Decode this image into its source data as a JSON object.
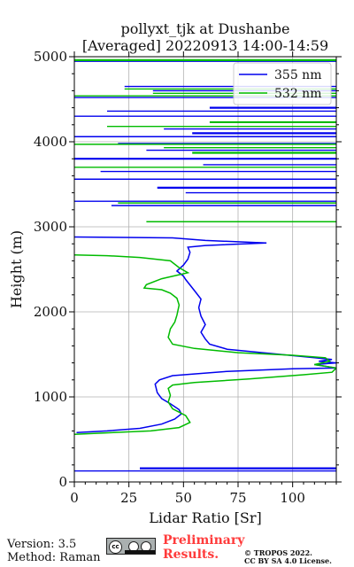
{
  "chart_data": {
    "type": "line",
    "title_line1": "pollyxt_tjk at Dushanbe",
    "title_line2": "[Averaged] 20220913 14:00-14:59",
    "xlabel": "Lidar Ratio [Sr]",
    "ylabel": "Height (m)",
    "xlim": [
      0,
      120
    ],
    "ylim": [
      0,
      5000
    ],
    "x_ticks": [
      "0",
      "25",
      "50",
      "75",
      "100"
    ],
    "y_ticks": [
      "0",
      "1000",
      "2000",
      "3000",
      "4000",
      "5000"
    ],
    "grid": true,
    "legend_position": "top-right",
    "series": [
      {
        "name": "355 nm",
        "color": "#0000ee",
        "points": [
          [
            1,
            580
          ],
          [
            15,
            600
          ],
          [
            30,
            630
          ],
          [
            40,
            680
          ],
          [
            46,
            740
          ],
          [
            49,
            800
          ],
          [
            48,
            850
          ],
          [
            44,
            920
          ],
          [
            40,
            980
          ],
          [
            38,
            1050
          ],
          [
            37,
            1150
          ],
          [
            39,
            1200
          ],
          [
            45,
            1250
          ],
          [
            70,
            1300
          ],
          [
            100,
            1330
          ],
          [
            120,
            1340
          ],
          [
            110,
            1380
          ],
          [
            120,
            1400
          ],
          [
            112,
            1420
          ],
          [
            118,
            1440
          ],
          [
            110,
            1460
          ],
          [
            90,
            1510
          ],
          [
            70,
            1560
          ],
          [
            62,
            1620
          ],
          [
            60,
            1680
          ],
          [
            58,
            1760
          ],
          [
            60,
            1850
          ],
          [
            58,
            1950
          ],
          [
            57,
            2050
          ],
          [
            58,
            2150
          ],
          [
            55,
            2250
          ],
          [
            51,
            2380
          ],
          [
            50,
            2420
          ],
          [
            47,
            2480
          ],
          [
            50,
            2550
          ],
          [
            52,
            2620
          ],
          [
            53,
            2700
          ],
          [
            52,
            2760
          ],
          [
            60,
            2780
          ],
          [
            88,
            2810
          ],
          [
            60,
            2840
          ],
          [
            45,
            2870
          ],
          [
            0,
            2880
          ]
        ]
      },
      {
        "name": "532 nm",
        "color": "#00bb00",
        "points": [
          [
            0,
            560
          ],
          [
            35,
            600
          ],
          [
            48,
            640
          ],
          [
            53,
            700
          ],
          [
            51,
            780
          ],
          [
            45,
            860
          ],
          [
            43,
            940
          ],
          [
            44,
            1020
          ],
          [
            43,
            1100
          ],
          [
            45,
            1140
          ],
          [
            55,
            1170
          ],
          [
            80,
            1210
          ],
          [
            105,
            1260
          ],
          [
            118,
            1290
          ],
          [
            120,
            1340
          ],
          [
            110,
            1380
          ],
          [
            117,
            1420
          ],
          [
            115,
            1460
          ],
          [
            100,
            1490
          ],
          [
            75,
            1520
          ],
          [
            55,
            1570
          ],
          [
            45,
            1620
          ],
          [
            43,
            1700
          ],
          [
            44,
            1800
          ],
          [
            46,
            1880
          ],
          [
            47,
            1960
          ],
          [
            48,
            2080
          ],
          [
            47,
            2160
          ],
          [
            44,
            2220
          ],
          [
            40,
            2260
          ],
          [
            32,
            2280
          ],
          [
            33,
            2320
          ],
          [
            40,
            2390
          ],
          [
            52,
            2460
          ],
          [
            48,
            2520
          ],
          [
            44,
            2600
          ],
          [
            30,
            2640
          ],
          [
            15,
            2660
          ],
          [
            0,
            2670
          ]
        ]
      }
    ],
    "spikes_355": [
      4950,
      4650,
      4600,
      4520,
      4400,
      4360,
      4300,
      4150,
      4100,
      4060,
      3980,
      3900,
      3800,
      3730,
      3650,
      3560,
      3460,
      3400,
      3300,
      3250,
      160,
      130
    ],
    "spikes_532": [
      4960,
      4620,
      4570,
      4540,
      4230,
      4180,
      3970,
      3930,
      3870,
      3700,
      3280,
      3060
    ],
    "footer": {
      "version": "Version: 3.5",
      "method": "Method: Raman",
      "preliminary_line1": "Preliminary",
      "preliminary_line2": "Results.",
      "copyright_line1": "© TROPOS 2022.",
      "copyright_line2": "CC BY SA 4.0 License.",
      "cc_label": "cc"
    }
  }
}
